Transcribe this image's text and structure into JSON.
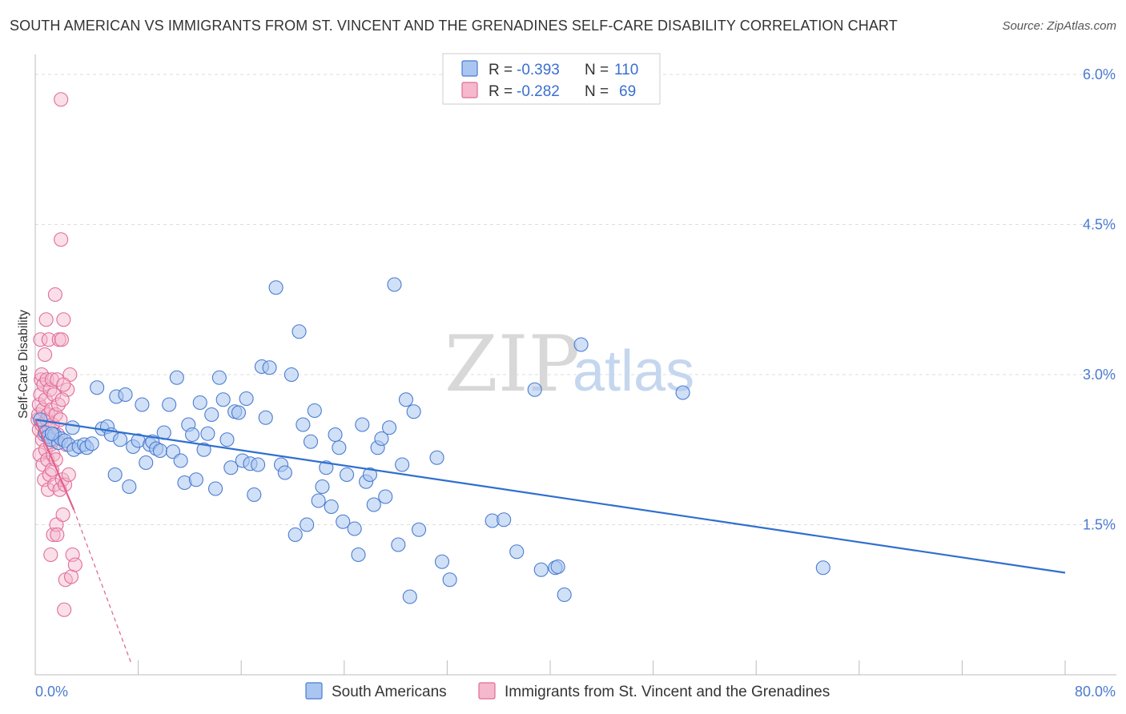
{
  "title": "SOUTH AMERICAN VS IMMIGRANTS FROM ST. VINCENT AND THE GRENADINES SELF-CARE DISABILITY CORRELATION CHART",
  "source": "Source: ZipAtlas.com",
  "watermark": {
    "zip": "ZIP",
    "atlas": "atlas"
  },
  "colors": {
    "blue": "#4a7bd0",
    "blue_fill": "#a9c6f0",
    "blue_line": "#2f6fcf",
    "pink": "#e16c98",
    "pink_fill": "#f5b8cd",
    "pink_line": "#e0608e"
  },
  "legend": {
    "rows": [
      {
        "r_label": "R =",
        "r_value": "-0.393",
        "n_label": "N =",
        "n_value": "110"
      },
      {
        "r_label": "R =",
        "r_value": "-0.282",
        "n_label": "N =",
        "n_value": "69"
      }
    ]
  },
  "chart_data": {
    "type": "scatter",
    "xlabel": "",
    "ylabel": "Self-Care Disability",
    "xlim": [
      0,
      80
    ],
    "ylim": [
      0,
      6.2
    ],
    "x_tick_labels": [
      "0.0%",
      "80.0%"
    ],
    "y_ticks": [
      1.5,
      3.0,
      4.5,
      6.0
    ],
    "y_tick_labels": [
      "1.5%",
      "3.0%",
      "4.5%",
      "6.0%"
    ],
    "grid": true,
    "legend_position": "bottom",
    "series": [
      {
        "name": "South Americans",
        "trend": {
          "x": [
            0,
            80
          ],
          "y": [
            2.55,
            1.02
          ]
        },
        "points": [
          [
            0.4,
            2.55
          ],
          [
            0.8,
            2.42
          ],
          [
            1.0,
            2.38
          ],
          [
            1.2,
            2.35
          ],
          [
            1.5,
            2.4
          ],
          [
            1.8,
            2.32
          ],
          [
            2.0,
            2.36
          ],
          [
            2.3,
            2.34
          ],
          [
            2.6,
            2.3
          ],
          [
            2.9,
            2.47
          ],
          [
            3.0,
            2.25
          ],
          [
            3.4,
            2.28
          ],
          [
            3.8,
            2.3
          ],
          [
            4.0,
            2.27
          ],
          [
            4.4,
            2.31
          ],
          [
            4.8,
            2.87
          ],
          [
            5.2,
            2.46
          ],
          [
            5.6,
            2.48
          ],
          [
            5.9,
            2.4
          ],
          [
            6.2,
            2.0
          ],
          [
            6.3,
            2.78
          ],
          [
            6.6,
            2.35
          ],
          [
            7.0,
            2.8
          ],
          [
            7.3,
            1.88
          ],
          [
            7.6,
            2.28
          ],
          [
            8.0,
            2.34
          ],
          [
            8.3,
            2.7
          ],
          [
            8.6,
            2.12
          ],
          [
            8.9,
            2.3
          ],
          [
            9.1,
            2.33
          ],
          [
            9.4,
            2.26
          ],
          [
            9.7,
            2.24
          ],
          [
            10.0,
            2.42
          ],
          [
            10.4,
            2.7
          ],
          [
            10.7,
            2.23
          ],
          [
            11.0,
            2.97
          ],
          [
            11.3,
            2.14
          ],
          [
            11.6,
            1.92
          ],
          [
            11.9,
            2.5
          ],
          [
            12.2,
            2.4
          ],
          [
            12.5,
            1.95
          ],
          [
            12.8,
            2.72
          ],
          [
            13.1,
            2.25
          ],
          [
            13.4,
            2.41
          ],
          [
            13.7,
            2.6
          ],
          [
            14.0,
            1.86
          ],
          [
            14.3,
            2.97
          ],
          [
            14.6,
            2.75
          ],
          [
            14.9,
            2.35
          ],
          [
            15.2,
            2.07
          ],
          [
            15.5,
            2.63
          ],
          [
            15.8,
            2.62
          ],
          [
            16.1,
            2.14
          ],
          [
            16.4,
            2.76
          ],
          [
            16.7,
            2.11
          ],
          [
            17.0,
            1.8
          ],
          [
            17.3,
            2.1
          ],
          [
            17.6,
            3.08
          ],
          [
            17.9,
            2.57
          ],
          [
            18.2,
            3.07
          ],
          [
            18.7,
            3.87
          ],
          [
            19.1,
            2.1
          ],
          [
            19.4,
            2.02
          ],
          [
            19.9,
            3.0
          ],
          [
            20.2,
            1.4
          ],
          [
            20.5,
            3.43
          ],
          [
            20.8,
            2.5
          ],
          [
            21.1,
            1.5
          ],
          [
            21.4,
            2.33
          ],
          [
            21.7,
            2.64
          ],
          [
            22.0,
            1.74
          ],
          [
            22.3,
            1.88
          ],
          [
            22.6,
            2.07
          ],
          [
            23.0,
            1.68
          ],
          [
            23.3,
            2.4
          ],
          [
            23.6,
            2.27
          ],
          [
            23.9,
            1.53
          ],
          [
            24.2,
            2.0
          ],
          [
            24.8,
            1.46
          ],
          [
            25.1,
            1.2
          ],
          [
            25.4,
            2.5
          ],
          [
            25.7,
            1.93
          ],
          [
            26.0,
            2.0
          ],
          [
            26.3,
            1.7
          ],
          [
            26.6,
            2.27
          ],
          [
            26.9,
            2.36
          ],
          [
            27.2,
            1.78
          ],
          [
            27.5,
            2.47
          ],
          [
            27.9,
            3.9
          ],
          [
            28.2,
            1.3
          ],
          [
            28.5,
            2.1
          ],
          [
            28.8,
            2.75
          ],
          [
            29.1,
            0.78
          ],
          [
            29.4,
            2.63
          ],
          [
            29.8,
            1.45
          ],
          [
            31.2,
            2.17
          ],
          [
            31.6,
            1.13
          ],
          [
            32.2,
            0.95
          ],
          [
            35.5,
            1.54
          ],
          [
            36.4,
            1.55
          ],
          [
            37.4,
            1.23
          ],
          [
            38.8,
            2.85
          ],
          [
            39.3,
            1.05
          ],
          [
            40.4,
            1.07
          ],
          [
            40.6,
            1.08
          ],
          [
            41.1,
            0.8
          ],
          [
            42.4,
            3.3
          ],
          [
            50.3,
            2.82
          ],
          [
            61.2,
            1.07
          ],
          [
            1.3,
            2.41
          ]
        ]
      },
      {
        "name": "Immigrants from St. Vincent and the Grenadines",
        "trend": {
          "x": [
            0,
            3.0
          ],
          "y": [
            2.55,
            1.65
          ],
          "dashed_extension": {
            "x": [
              3.0,
              7.5
            ],
            "y": [
              1.65,
              0.1
            ]
          }
        },
        "points": [
          [
            0.2,
            2.55
          ],
          [
            0.25,
            2.6
          ],
          [
            0.3,
            2.7
          ],
          [
            0.3,
            2.45
          ],
          [
            0.35,
            2.2
          ],
          [
            0.4,
            2.8
          ],
          [
            0.4,
            3.35
          ],
          [
            0.45,
            2.95
          ],
          [
            0.5,
            3.0
          ],
          [
            0.5,
            2.5
          ],
          [
            0.55,
            2.35
          ],
          [
            0.6,
            2.1
          ],
          [
            0.6,
            2.65
          ],
          [
            0.65,
            2.9
          ],
          [
            0.7,
            2.4
          ],
          [
            0.7,
            1.95
          ],
          [
            0.75,
            3.2
          ],
          [
            0.8,
            2.75
          ],
          [
            0.8,
            2.25
          ],
          [
            0.85,
            3.55
          ],
          [
            0.9,
            2.95
          ],
          [
            0.9,
            2.55
          ],
          [
            0.95,
            2.15
          ],
          [
            1.0,
            1.85
          ],
          [
            1.0,
            2.6
          ],
          [
            1.05,
            3.35
          ],
          [
            1.1,
            2.0
          ],
          [
            1.1,
            2.45
          ],
          [
            1.15,
            2.85
          ],
          [
            1.2,
            1.2
          ],
          [
            1.2,
            2.3
          ],
          [
            1.25,
            2.65
          ],
          [
            1.3,
            2.05
          ],
          [
            1.3,
            2.95
          ],
          [
            1.35,
            2.5
          ],
          [
            1.4,
            1.4
          ],
          [
            1.4,
            2.2
          ],
          [
            1.45,
            2.8
          ],
          [
            1.5,
            2.35
          ],
          [
            1.5,
            1.9
          ],
          [
            1.55,
            3.8
          ],
          [
            1.6,
            2.6
          ],
          [
            1.6,
            2.15
          ],
          [
            1.65,
            1.5
          ],
          [
            1.7,
            2.95
          ],
          [
            1.7,
            1.4
          ],
          [
            1.75,
            2.4
          ],
          [
            1.8,
            2.7
          ],
          [
            1.85,
            3.35
          ],
          [
            1.9,
            1.85
          ],
          [
            1.95,
            2.55
          ],
          [
            2.0,
            4.35
          ],
          [
            2.0,
            5.75
          ],
          [
            2.05,
            3.35
          ],
          [
            2.1,
            1.95
          ],
          [
            2.15,
            1.6
          ],
          [
            2.2,
            3.55
          ],
          [
            2.25,
            0.65
          ],
          [
            2.3,
            1.9
          ],
          [
            2.35,
            0.95
          ],
          [
            2.4,
            2.3
          ],
          [
            2.5,
            2.85
          ],
          [
            2.6,
            2.0
          ],
          [
            2.8,
            0.98
          ],
          [
            2.9,
            1.2
          ],
          [
            3.1,
            1.1
          ],
          [
            2.7,
            3.0
          ],
          [
            2.2,
            2.9
          ],
          [
            2.1,
            2.75
          ]
        ]
      }
    ]
  }
}
